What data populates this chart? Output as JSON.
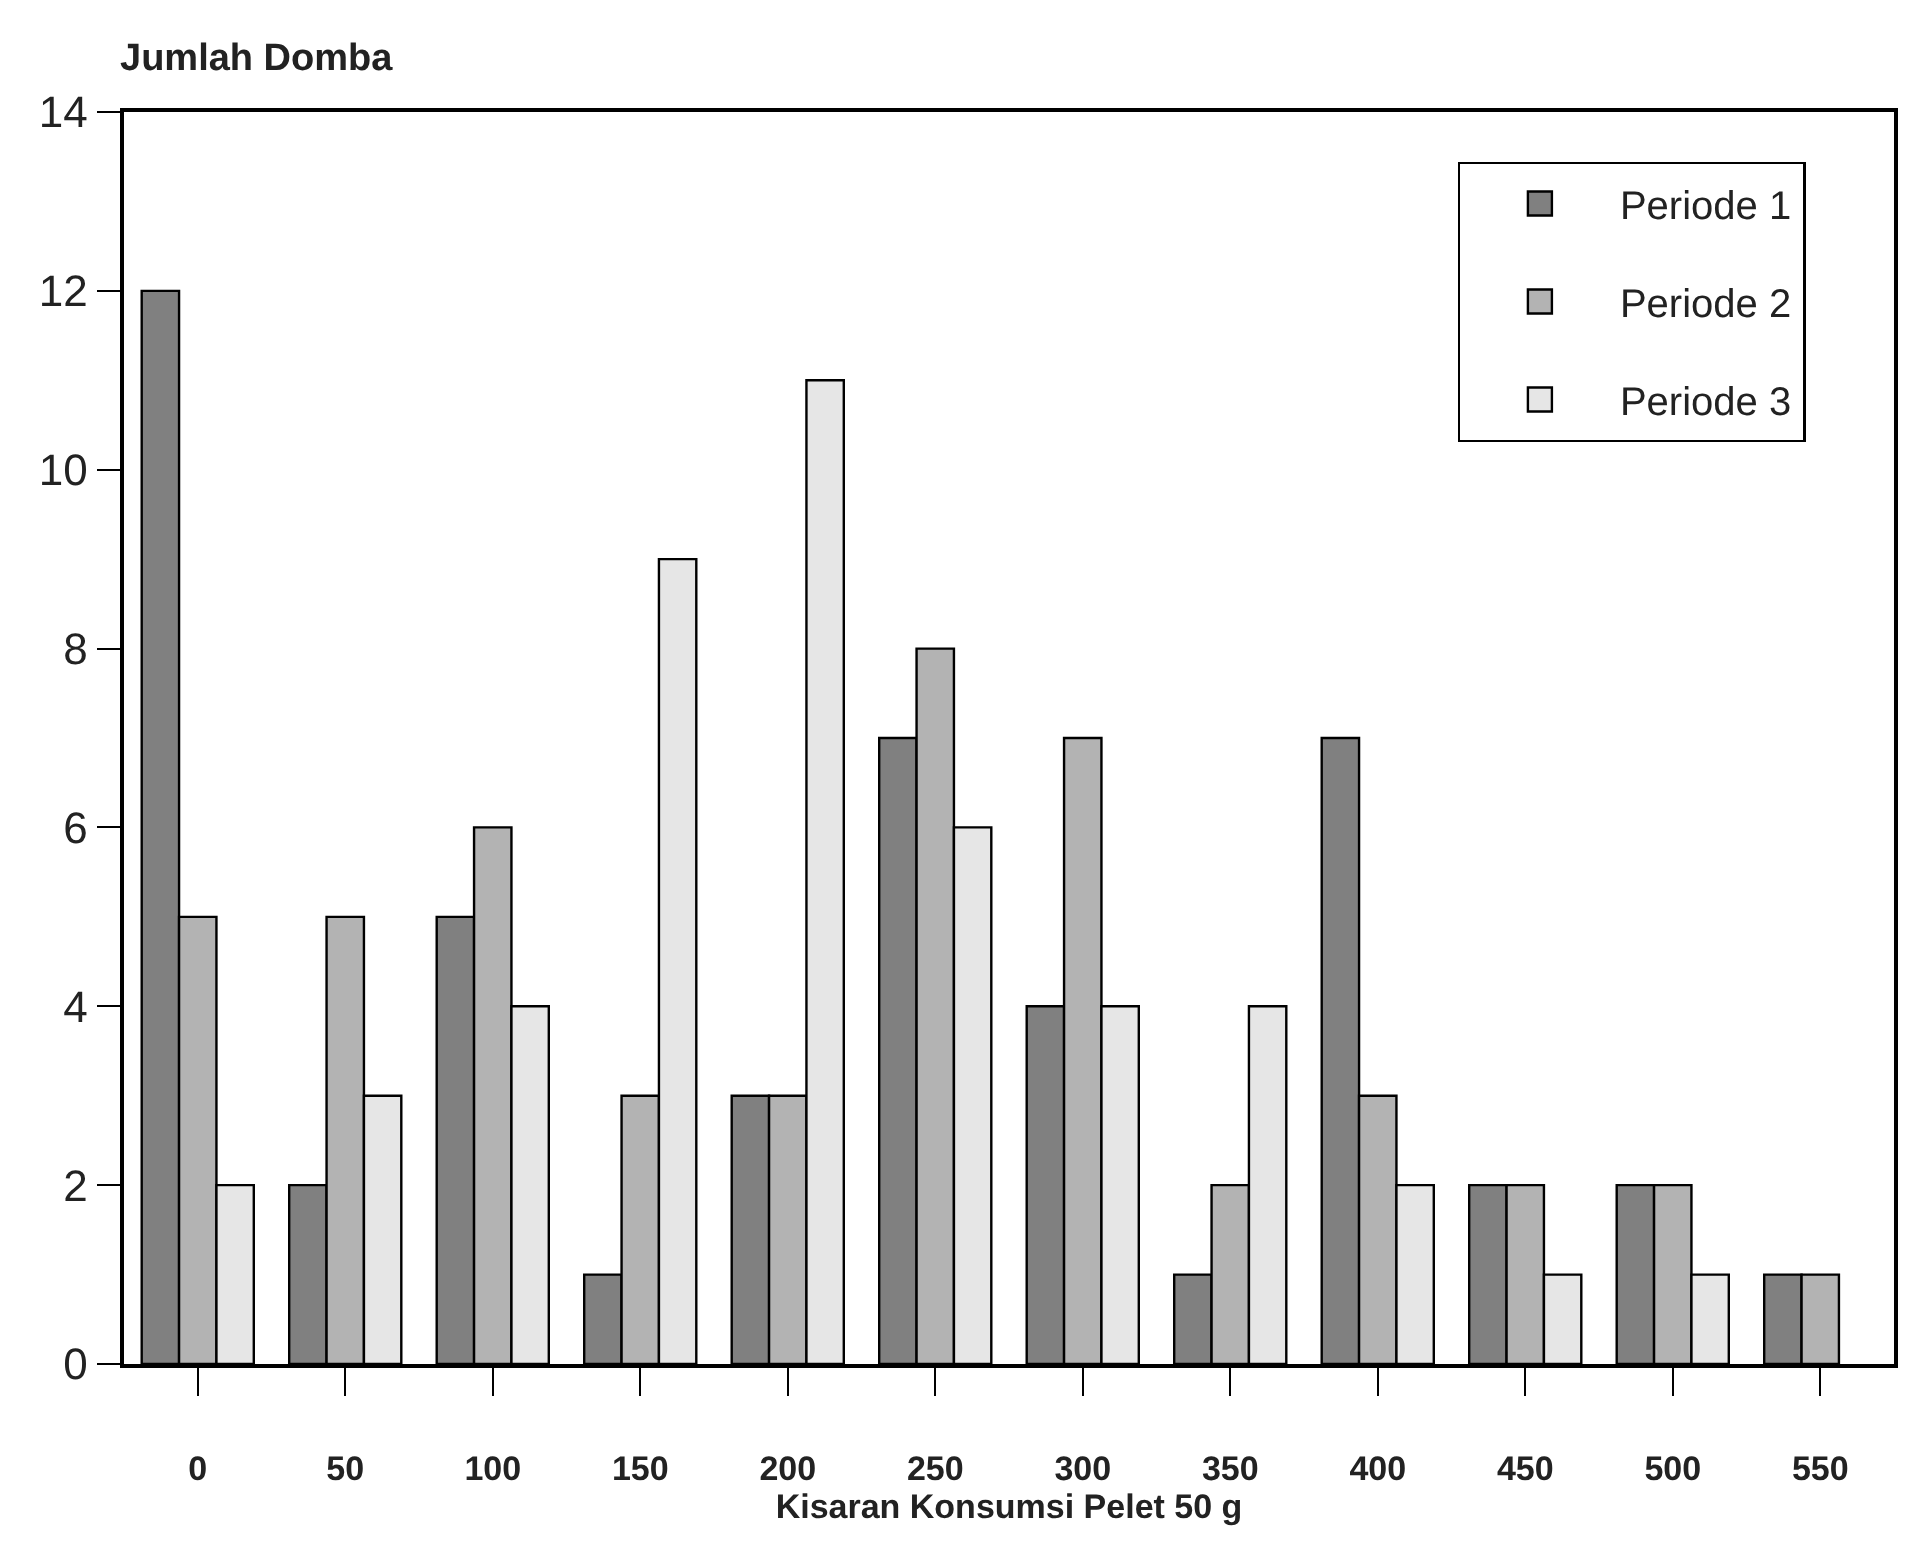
{
  "chart_data": {
    "type": "bar",
    "xlabel": "Kisaran Konsumsi Pelet 50 g",
    "ylabel": "Jumlah Domba",
    "categories": [
      "0",
      "50",
      "100",
      "150",
      "200",
      "250",
      "300",
      "350",
      "400",
      "450",
      "500",
      "550"
    ],
    "series": [
      {
        "name": "Periode 1",
        "color": "#808080",
        "values": [
          12,
          2,
          5,
          1,
          3,
          7,
          4,
          1,
          7,
          2,
          2,
          1
        ]
      },
      {
        "name": "Periode 2",
        "color": "#b3b3b3",
        "values": [
          5,
          5,
          6,
          3,
          3,
          8,
          7,
          2,
          3,
          2,
          2,
          1
        ]
      },
      {
        "name": "Periode 3",
        "color": "#e6e6e6",
        "values": [
          2,
          3,
          4,
          9,
          11,
          6,
          4,
          4,
          2,
          1,
          1,
          null
        ]
      }
    ],
    "ylim": [
      0,
      14
    ],
    "yticks": [
      0,
      2,
      4,
      6,
      8,
      10,
      12,
      14
    ],
    "grid": false,
    "legend": "top right"
  }
}
